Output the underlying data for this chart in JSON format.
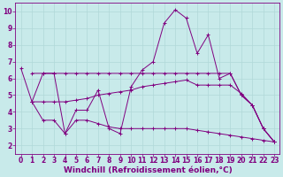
{
  "bg_color": "#c8eaea",
  "line_color": "#800080",
  "grid_color": "#b0d8d8",
  "xlabel": "Windchill (Refroidissement éolien,°C)",
  "xlabel_fontsize": 6.5,
  "tick_fontsize": 5.5,
  "ylim": [
    1.5,
    10.5
  ],
  "xlim": [
    -0.5,
    23.5
  ],
  "yticks": [
    2,
    3,
    4,
    5,
    6,
    7,
    8,
    9,
    10
  ],
  "xticks": [
    0,
    1,
    2,
    3,
    4,
    5,
    6,
    7,
    8,
    9,
    10,
    11,
    12,
    13,
    14,
    15,
    16,
    17,
    18,
    19,
    20,
    21,
    22,
    23
  ],
  "series1_x": [
    0,
    1,
    2,
    3,
    4,
    5,
    6,
    7,
    8,
    9,
    10,
    11,
    12,
    13,
    14,
    15,
    16,
    17,
    18,
    19,
    20,
    21,
    22,
    23
  ],
  "series1_y": [
    6.6,
    4.6,
    6.3,
    6.3,
    2.7,
    4.1,
    4.1,
    5.3,
    3.0,
    2.7,
    5.5,
    6.5,
    7.0,
    9.3,
    10.1,
    9.6,
    7.5,
    8.6,
    6.0,
    6.3,
    5.0,
    4.4,
    3.0,
    2.2
  ],
  "series2_x": [
    1,
    2,
    3,
    4,
    5,
    6,
    7,
    8,
    9,
    10,
    11,
    12,
    13,
    14,
    15,
    16,
    17,
    18,
    19,
    20,
    21,
    22,
    23
  ],
  "series2_y": [
    6.3,
    6.3,
    6.3,
    6.3,
    6.3,
    6.3,
    6.3,
    6.3,
    6.3,
    6.3,
    6.3,
    6.3,
    6.3,
    6.3,
    6.3,
    6.3,
    6.3,
    6.3,
    6.3,
    5.0,
    4.4,
    3.0,
    2.2
  ],
  "series3_x": [
    1,
    2,
    3,
    4,
    5,
    6,
    7,
    8,
    9,
    10,
    11,
    12,
    13,
    14,
    15,
    16,
    17,
    18,
    19,
    20,
    21,
    22,
    23
  ],
  "series3_y": [
    4.6,
    4.6,
    4.6,
    4.6,
    4.7,
    4.8,
    5.0,
    5.1,
    5.2,
    5.3,
    5.5,
    5.6,
    5.7,
    5.8,
    5.9,
    5.6,
    5.6,
    5.6,
    5.6,
    5.1,
    4.4,
    3.0,
    2.2
  ],
  "series4_x": [
    1,
    2,
    3,
    4,
    5,
    6,
    7,
    8,
    9,
    10,
    11,
    12,
    13,
    14,
    15,
    16,
    17,
    18,
    19,
    20,
    21,
    22,
    23
  ],
  "series4_y": [
    4.6,
    3.5,
    3.5,
    2.7,
    3.5,
    3.5,
    3.3,
    3.1,
    3.0,
    3.0,
    3.0,
    3.0,
    3.0,
    3.0,
    3.0,
    2.9,
    2.8,
    2.7,
    2.6,
    2.5,
    2.4,
    2.3,
    2.2
  ]
}
